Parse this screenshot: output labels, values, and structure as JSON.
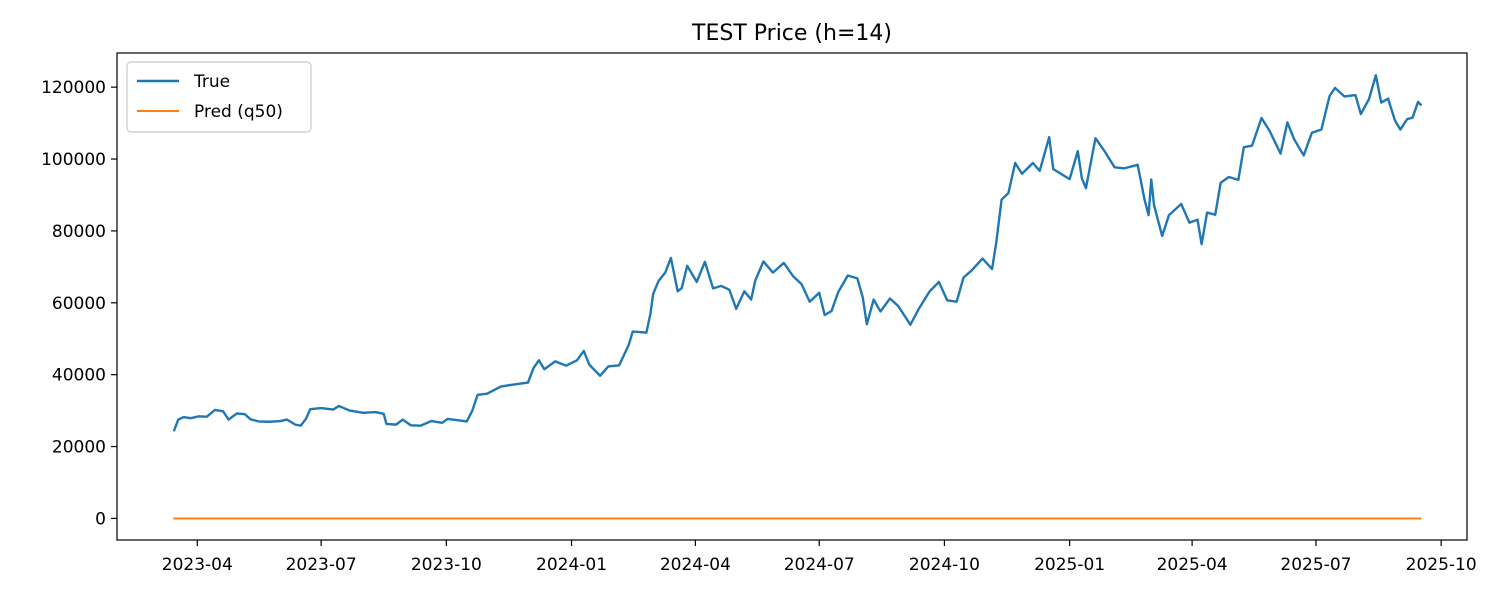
{
  "chart_data": {
    "type": "line",
    "title": "TEST Price (h=14)",
    "xlabel": "",
    "ylabel": "",
    "x_tick_labels": [
      "2023-04",
      "2023-07",
      "2023-10",
      "2024-01",
      "2024-04",
      "2024-07",
      "2024-10",
      "2025-01",
      "2025-04",
      "2025-07",
      "2025-10"
    ],
    "x_tick_dates": [
      "2023-04-01",
      "2023-07-01",
      "2023-10-01",
      "2024-01-01",
      "2024-04-01",
      "2024-07-01",
      "2024-10-01",
      "2025-01-01",
      "2025-04-01",
      "2025-07-01",
      "2025-10-01"
    ],
    "y_ticks": [
      0,
      20000,
      40000,
      60000,
      80000,
      100000,
      120000
    ],
    "xlim": [
      "2023-02-01",
      "2025-10-20"
    ],
    "ylim": [
      -6000,
      129500
    ],
    "grid": false,
    "legend": "upper left",
    "series": [
      {
        "name": "True",
        "color": "#1f77b4",
        "points": [
          [
            "2023-03-15",
            24500
          ],
          [
            "2023-03-18",
            27500
          ],
          [
            "2023-03-22",
            28200
          ],
          [
            "2023-03-27",
            27900
          ],
          [
            "2023-04-02",
            28400
          ],
          [
            "2023-04-08",
            28300
          ],
          [
            "2023-04-14",
            30200
          ],
          [
            "2023-04-20",
            29800
          ],
          [
            "2023-04-24",
            27500
          ],
          [
            "2023-04-30",
            29200
          ],
          [
            "2023-05-06",
            29000
          ],
          [
            "2023-05-10",
            27600
          ],
          [
            "2023-05-16",
            27000
          ],
          [
            "2023-05-24",
            26900
          ],
          [
            "2023-06-01",
            27100
          ],
          [
            "2023-06-06",
            27500
          ],
          [
            "2023-06-12",
            26100
          ],
          [
            "2023-06-16",
            25800
          ],
          [
            "2023-06-20",
            27800
          ],
          [
            "2023-06-23",
            30400
          ],
          [
            "2023-07-01",
            30700
          ],
          [
            "2023-07-10",
            30300
          ],
          [
            "2023-07-14",
            31300
          ],
          [
            "2023-07-22",
            30000
          ],
          [
            "2023-08-01",
            29400
          ],
          [
            "2023-08-10",
            29600
          ],
          [
            "2023-08-16",
            29100
          ],
          [
            "2023-08-18",
            26300
          ],
          [
            "2023-08-25",
            26100
          ],
          [
            "2023-08-30",
            27500
          ],
          [
            "2023-09-05",
            25900
          ],
          [
            "2023-09-12",
            25800
          ],
          [
            "2023-09-20",
            27100
          ],
          [
            "2023-09-28",
            26600
          ],
          [
            "2023-10-02",
            27700
          ],
          [
            "2023-10-10",
            27300
          ],
          [
            "2023-10-16",
            27000
          ],
          [
            "2023-10-20",
            29900
          ],
          [
            "2023-10-24",
            34400
          ],
          [
            "2023-10-31",
            34700
          ],
          [
            "2023-11-10",
            36700
          ],
          [
            "2023-11-20",
            37300
          ],
          [
            "2023-11-30",
            37800
          ],
          [
            "2023-12-04",
            41800
          ],
          [
            "2023-12-08",
            44000
          ],
          [
            "2023-12-12",
            41500
          ],
          [
            "2023-12-20",
            43700
          ],
          [
            "2023-12-28",
            42500
          ],
          [
            "2024-01-05",
            44000
          ],
          [
            "2024-01-10",
            46600
          ],
          [
            "2024-01-14",
            42800
          ],
          [
            "2024-01-22",
            39700
          ],
          [
            "2024-01-28",
            42300
          ],
          [
            "2024-02-05",
            42600
          ],
          [
            "2024-02-12",
            48300
          ],
          [
            "2024-02-15",
            52000
          ],
          [
            "2024-02-25",
            51700
          ],
          [
            "2024-02-28",
            57000
          ],
          [
            "2024-03-01",
            62500
          ],
          [
            "2024-03-05",
            66100
          ],
          [
            "2024-03-10",
            68500
          ],
          [
            "2024-03-14",
            72500
          ],
          [
            "2024-03-19",
            63200
          ],
          [
            "2024-03-22",
            64100
          ],
          [
            "2024-03-26",
            70300
          ],
          [
            "2024-04-02",
            65800
          ],
          [
            "2024-04-08",
            71400
          ],
          [
            "2024-04-14",
            64000
          ],
          [
            "2024-04-20",
            64700
          ],
          [
            "2024-04-26",
            63600
          ],
          [
            "2024-05-01",
            58300
          ],
          [
            "2024-05-07",
            63200
          ],
          [
            "2024-05-12",
            60900
          ],
          [
            "2024-05-15",
            66200
          ],
          [
            "2024-05-21",
            71500
          ],
          [
            "2024-05-28",
            68400
          ],
          [
            "2024-06-05",
            71100
          ],
          [
            "2024-06-12",
            67300
          ],
          [
            "2024-06-18",
            65200
          ],
          [
            "2024-06-24",
            60300
          ],
          [
            "2024-07-01",
            62800
          ],
          [
            "2024-07-05",
            56600
          ],
          [
            "2024-07-10",
            57700
          ],
          [
            "2024-07-15",
            63000
          ],
          [
            "2024-07-22",
            67600
          ],
          [
            "2024-07-29",
            66800
          ],
          [
            "2024-08-02",
            61500
          ],
          [
            "2024-08-05",
            54000
          ],
          [
            "2024-08-10",
            60900
          ],
          [
            "2024-08-15",
            57600
          ],
          [
            "2024-08-22",
            61200
          ],
          [
            "2024-08-28",
            59100
          ],
          [
            "2024-09-06",
            53900
          ],
          [
            "2024-09-12",
            58200
          ],
          [
            "2024-09-20",
            63100
          ],
          [
            "2024-09-27",
            65800
          ],
          [
            "2024-10-03",
            60700
          ],
          [
            "2024-10-10",
            60300
          ],
          [
            "2024-10-15",
            67000
          ],
          [
            "2024-10-21",
            69000
          ],
          [
            "2024-10-29",
            72300
          ],
          [
            "2024-11-05",
            69400
          ],
          [
            "2024-11-08",
            76500
          ],
          [
            "2024-11-12",
            88700
          ],
          [
            "2024-11-17",
            90500
          ],
          [
            "2024-11-22",
            98900
          ],
          [
            "2024-11-27",
            95900
          ],
          [
            "2024-12-05",
            98900
          ],
          [
            "2024-12-10",
            96700
          ],
          [
            "2024-12-17",
            106100
          ],
          [
            "2024-12-20",
            97200
          ],
          [
            "2024-12-26",
            95800
          ],
          [
            "2025-01-01",
            94400
          ],
          [
            "2025-01-07",
            102200
          ],
          [
            "2025-01-10",
            94600
          ],
          [
            "2025-01-13",
            91900
          ],
          [
            "2025-01-20",
            105800
          ],
          [
            "2025-01-27",
            102000
          ],
          [
            "2025-02-03",
            97700
          ],
          [
            "2025-02-10",
            97400
          ],
          [
            "2025-02-20",
            98400
          ],
          [
            "2025-02-25",
            88800
          ],
          [
            "2025-02-28",
            84400
          ],
          [
            "2025-03-02",
            94300
          ],
          [
            "2025-03-04",
            87200
          ],
          [
            "2025-03-10",
            78600
          ],
          [
            "2025-03-15",
            84400
          ],
          [
            "2025-03-24",
            87500
          ],
          [
            "2025-03-30",
            82300
          ],
          [
            "2025-04-05",
            83100
          ],
          [
            "2025-04-08",
            76300
          ],
          [
            "2025-04-12",
            85100
          ],
          [
            "2025-04-18",
            84500
          ],
          [
            "2025-04-22",
            93400
          ],
          [
            "2025-04-28",
            95000
          ],
          [
            "2025-05-05",
            94200
          ],
          [
            "2025-05-09",
            103300
          ],
          [
            "2025-05-15",
            103700
          ],
          [
            "2025-05-22",
            111400
          ],
          [
            "2025-05-28",
            107800
          ],
          [
            "2025-06-05",
            101500
          ],
          [
            "2025-06-10",
            110200
          ],
          [
            "2025-06-15",
            105500
          ],
          [
            "2025-06-22",
            101000
          ],
          [
            "2025-06-28",
            107300
          ],
          [
            "2025-07-05",
            108200
          ],
          [
            "2025-07-11",
            117500
          ],
          [
            "2025-07-15",
            119800
          ],
          [
            "2025-07-22",
            117400
          ],
          [
            "2025-07-30",
            117800
          ],
          [
            "2025-08-03",
            112500
          ],
          [
            "2025-08-09",
            116700
          ],
          [
            "2025-08-14",
            123300
          ],
          [
            "2025-08-18",
            115700
          ],
          [
            "2025-08-23",
            116800
          ],
          [
            "2025-08-28",
            110800
          ],
          [
            "2025-09-01",
            108200
          ],
          [
            "2025-09-06",
            111100
          ],
          [
            "2025-09-10",
            111500
          ],
          [
            "2025-09-14",
            115900
          ],
          [
            "2025-09-16",
            115100
          ]
        ]
      },
      {
        "name": "Pred (q50)",
        "color": "#ff7f0e",
        "points": [
          [
            "2023-03-15",
            0
          ],
          [
            "2025-09-16",
            0
          ]
        ]
      }
    ]
  }
}
